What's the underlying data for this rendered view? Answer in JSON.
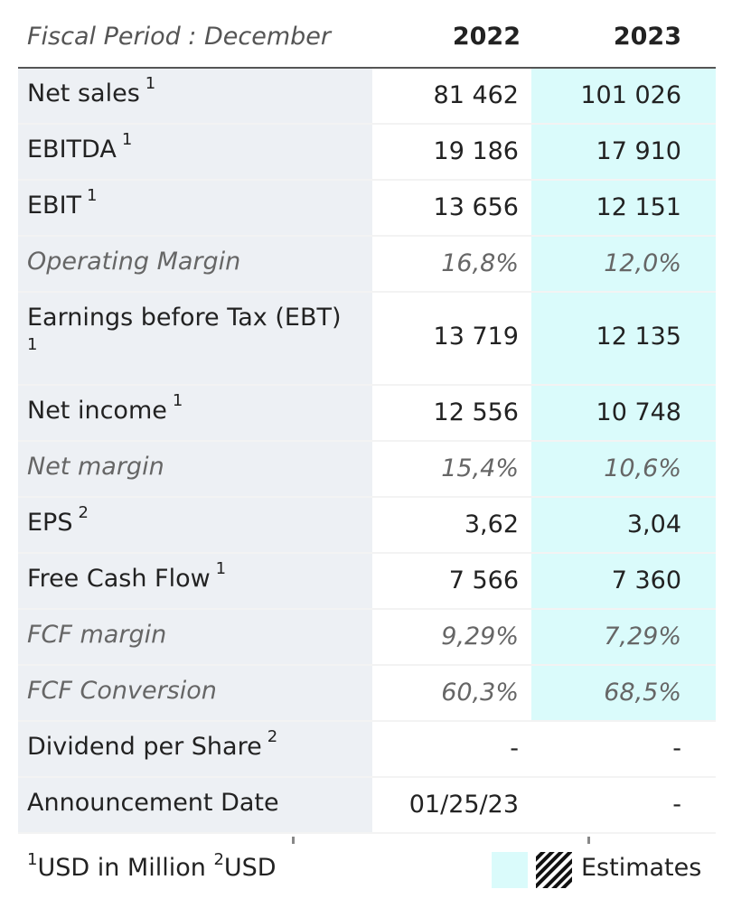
{
  "header": {
    "period_label": "Fiscal Period : December",
    "years": [
      "2022",
      "2023"
    ]
  },
  "rows": [
    {
      "label": "Net sales",
      "sup": "1",
      "v2022": "81 462",
      "v2023": "101 026"
    },
    {
      "label": "EBITDA",
      "sup": "1",
      "v2022": "19 186",
      "v2023": "17 910"
    },
    {
      "label": "EBIT",
      "sup": "1",
      "v2022": "13 656",
      "v2023": "12 151"
    },
    {
      "label": "Operating Margin",
      "sup": "",
      "v2022": "16,8%",
      "v2023": "12,0%"
    },
    {
      "label": "Earnings before Tax (EBT)",
      "sup": "1",
      "v2022": "13 719",
      "v2023": "12 135"
    },
    {
      "label": "Net income",
      "sup": "1",
      "v2022": "12 556",
      "v2023": "10 748"
    },
    {
      "label": "Net margin",
      "sup": "",
      "v2022": "15,4%",
      "v2023": "10,6%"
    },
    {
      "label": "EPS",
      "sup": "2",
      "v2022": "3,62",
      "v2023": "3,04"
    },
    {
      "label": "Free Cash Flow",
      "sup": "1",
      "v2022": "7 566",
      "v2023": "7 360"
    },
    {
      "label": "FCF margin",
      "sup": "",
      "v2022": "9,29%",
      "v2023": "7,29%"
    },
    {
      "label": "FCF Conversion",
      "sup": "",
      "v2022": "60,3%",
      "v2023": "68,5%"
    },
    {
      "label": "Dividend per Share",
      "sup": "2",
      "v2022": "-",
      "v2023": "-"
    },
    {
      "label": "Announcement Date",
      "sup": "",
      "v2022": "01/25/23",
      "v2023": "-"
    }
  ],
  "footer": {
    "note1_sup": "1",
    "note1_text": "USD in Million ",
    "note2_sup": "2",
    "note2_text": "USD",
    "legend_label": "Estimates"
  },
  "colors": {
    "estimate_bg": "#dafbfb",
    "label_bg": "#edf0f4"
  }
}
